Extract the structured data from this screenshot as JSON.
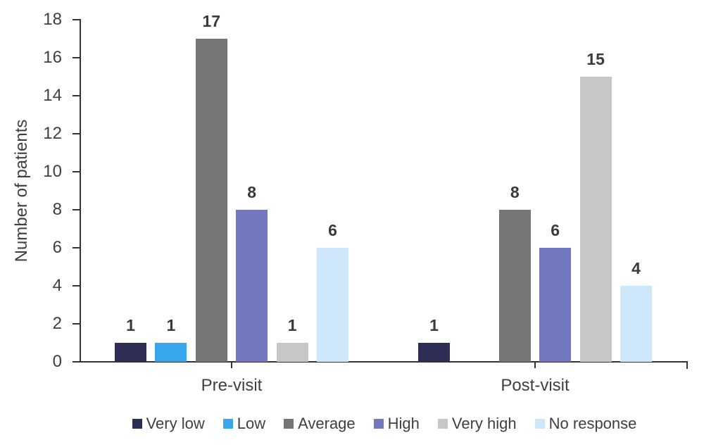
{
  "chart_data": {
    "type": "bar",
    "title": "",
    "xlabel": "",
    "ylabel": "Number of patients",
    "categories": [
      "Pre-visit",
      "Post-visit"
    ],
    "series": [
      {
        "name": "Very low",
        "color": "#2D2D56",
        "values": [
          1,
          1
        ]
      },
      {
        "name": "Low",
        "color": "#38A6EC",
        "values": [
          1,
          0
        ]
      },
      {
        "name": "Average",
        "color": "#767676",
        "values": [
          17,
          8
        ]
      },
      {
        "name": "High",
        "color": "#7378BE",
        "values": [
          8,
          6
        ]
      },
      {
        "name": "Very high",
        "color": "#C7C7C7",
        "values": [
          1,
          15
        ]
      },
      {
        "name": "No response",
        "color": "#CFE7FA",
        "values": [
          6,
          4
        ]
      }
    ],
    "ylim": [
      0,
      18
    ],
    "yticks": [
      0,
      2,
      4,
      6,
      8,
      10,
      12,
      14,
      16,
      18
    ],
    "grid": false,
    "legend_position": "bottom",
    "bar_value_labels": true,
    "zero_values_hidden": true,
    "text_color": "#3F3F3F",
    "axis_color": "#333333",
    "background_color": "#FFFFFF"
  }
}
